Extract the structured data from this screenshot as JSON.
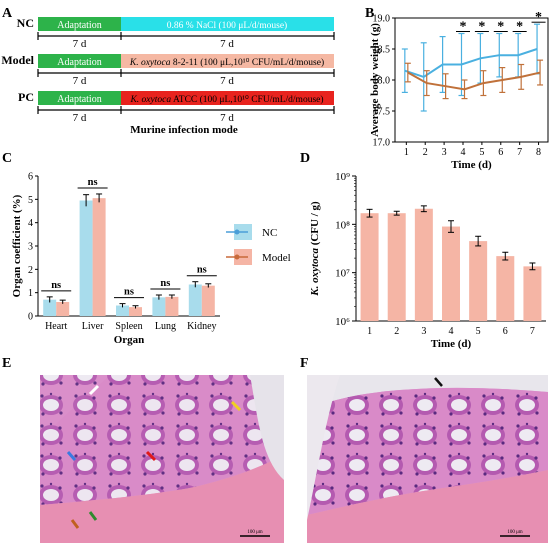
{
  "panel_labels": [
    "A",
    "B",
    "C",
    "D",
    "E",
    "F"
  ],
  "protocol": {
    "caption": "Murine infection mode",
    "rows": [
      {
        "group": "NC",
        "adaptation": "Adaptation",
        "phase1_days": "7 d",
        "treatment_prefix": "",
        "treatment_rest": "0.86 % NaCl (100 μL/d/mouse)",
        "phase2_days": "7 d",
        "treatment_color": "#29e0e8"
      },
      {
        "group": "Model",
        "adaptation": "Adaptation",
        "phase1_days": "7 d",
        "treatment_prefix": "K. oxytoca",
        "treatment_rest": " 8-2-11 (100 μL,10¹⁰ CFU/mL/d/mouse)",
        "phase2_days": "7 d",
        "treatment_color": "#f5b8a3"
      },
      {
        "group": "PC",
        "adaptation": "Adaptation",
        "phase1_days": "7 d",
        "treatment_prefix": "K. oxytoca",
        "treatment_rest": " ATCC (100 μL,10¹⁰ CFU/mL/d/mouse)",
        "phase2_days": "7 d",
        "treatment_color": "#e8231e"
      }
    ],
    "adaptation_color": "#2db34a"
  },
  "chart_data": [
    {
      "type": "line",
      "panel": "B",
      "xlabel": "Time (d)",
      "ylabel": "Average body weight (g)",
      "x": [
        1,
        2,
        3,
        4,
        5,
        6,
        7,
        8
      ],
      "xlim": [
        0.4,
        8.5
      ],
      "ylim": [
        17.0,
        19.0
      ],
      "yticks": [
        "17.0",
        "17.5",
        "18.0",
        "18.5",
        "19.0"
      ],
      "series": [
        {
          "color": "#4ab0e0",
          "values": [
            18.15,
            18.05,
            18.25,
            18.25,
            18.35,
            18.4,
            18.4,
            18.5
          ],
          "err": [
            0.35,
            0.55,
            0.45,
            0.5,
            0.4,
            0.35,
            0.35,
            0.4
          ]
        },
        {
          "color": "#c0713a",
          "values": [
            18.12,
            17.95,
            17.9,
            17.85,
            17.95,
            18.0,
            18.05,
            18.12
          ],
          "err": [
            0.15,
            0.2,
            0.2,
            0.15,
            0.2,
            0.2,
            0.2,
            0.2
          ]
        }
      ],
      "significance": [
        {
          "x": 4,
          "label": "*"
        },
        {
          "x": 5,
          "label": "*"
        },
        {
          "x": 6,
          "label": "*"
        },
        {
          "x": 7,
          "label": "*"
        },
        {
          "x": 8,
          "label": "*"
        }
      ]
    },
    {
      "type": "bar",
      "panel": "C",
      "xlabel": "Organ",
      "ylabel": "Organ coefficient (%)",
      "categories": [
        "Heart",
        "Liver",
        "Spleen",
        "Lung",
        "Kidney"
      ],
      "ylim": [
        0,
        6
      ],
      "yticks": [
        "0",
        "1",
        "2",
        "3",
        "4",
        "5",
        "6"
      ],
      "series": [
        {
          "name": "NC",
          "color": "#a8dcec",
          "line_color": "#4a9ed8",
          "values": [
            0.7,
            4.95,
            0.45,
            0.8,
            1.35
          ],
          "err": [
            0.12,
            0.25,
            0.08,
            0.1,
            0.12
          ]
        },
        {
          "name": "Model",
          "color": "#f5b5a5",
          "line_color": "#c86a3a",
          "values": [
            0.6,
            5.05,
            0.38,
            0.82,
            1.3
          ],
          "err": [
            0.08,
            0.18,
            0.06,
            0.08,
            0.08
          ]
        }
      ],
      "annotations": [
        "ns",
        "ns",
        "ns",
        "ns",
        "ns"
      ]
    },
    {
      "type": "bar",
      "panel": "D",
      "xlabel": "Time (d)",
      "ylabel_prefix": "K. oxytoca",
      "ylabel_rest": "  (CFU / g)",
      "categories": [
        "1",
        "2",
        "3",
        "4",
        "5",
        "6",
        "7"
      ],
      "log_scale": true,
      "ylim": [
        1000000,
        1000000000
      ],
      "yticks": [
        "10⁶",
        "10⁷",
        "10⁸",
        "10⁹"
      ],
      "bar_color": "#f5b5a5",
      "values": [
        170000000,
        170000000,
        210000000,
        90000000,
        45000000,
        22000000,
        13500000
      ],
      "err_log": [
        0.08,
        0.04,
        0.06,
        0.12,
        0.1,
        0.08,
        0.07
      ]
    }
  ],
  "histology": [
    {
      "panel": "E",
      "scale_bar": "100 μm"
    },
    {
      "panel": "F",
      "scale_bar": "100 μm"
    }
  ]
}
